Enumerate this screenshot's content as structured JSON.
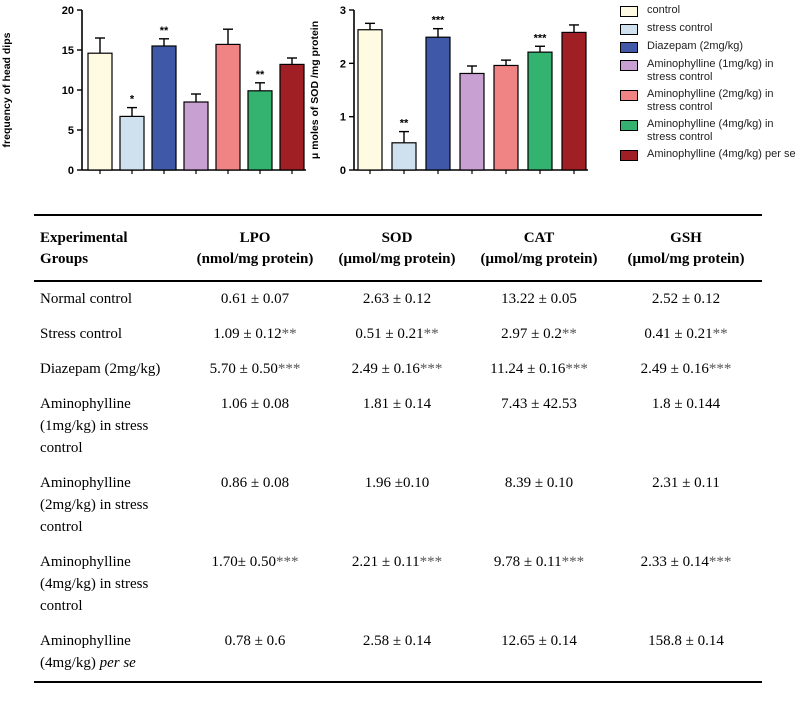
{
  "chart_data": [
    {
      "type": "bar",
      "ylabel": "frequency of head dips",
      "ylim": [
        0,
        20
      ],
      "yticks": [
        0,
        5,
        10,
        15,
        20
      ],
      "categories": [
        "control",
        "stress control",
        "Diazepam (2mg/kg)",
        "Aminophylline (1mg/kg) in stress control",
        "Aminophylline (2mg/kg) in stress control",
        "Aminophylline (4mg/kg) in stress control",
        "Aminophylline (4mg/kg) per se"
      ],
      "values": [
        14.6,
        6.7,
        15.5,
        8.5,
        15.7,
        9.9,
        13.2
      ],
      "errors": [
        1.9,
        1.1,
        0.9,
        1.0,
        1.9,
        1.0,
        0.8
      ],
      "significance": [
        "",
        "*",
        "**",
        "",
        "",
        "**",
        ""
      ]
    },
    {
      "type": "bar",
      "ylabel": "μ moles of SOD /mg protein",
      "ylim": [
        0,
        3
      ],
      "yticks": [
        0,
        1,
        2,
        3
      ],
      "categories": [
        "control",
        "stress control",
        "Diazepam (2mg/kg)",
        "Aminophylline (1mg/kg) in stress control",
        "Aminophylline (2mg/kg) in stress control",
        "Aminophylline (4mg/kg) in stress control",
        "Aminophylline (4mg/kg) per se"
      ],
      "values": [
        2.63,
        0.51,
        2.49,
        1.81,
        1.96,
        2.21,
        2.58
      ],
      "errors": [
        0.12,
        0.21,
        0.16,
        0.14,
        0.1,
        0.11,
        0.14
      ],
      "significance": [
        "",
        "**",
        "***",
        "",
        "",
        "***",
        ""
      ]
    }
  ],
  "colors": [
    "#fffbe3",
    "#cfe1ef",
    "#3f58a8",
    "#c9a0d2",
    "#f08484",
    "#34b26f",
    "#a01f24"
  ],
  "legend": [
    {
      "label": "control"
    },
    {
      "label": "stress control"
    },
    {
      "label": "Diazepam (2mg/kg)"
    },
    {
      "label": "Aminophylline (1mg/kg) in stress control"
    },
    {
      "label": "Aminophylline (2mg/kg) in stress control"
    },
    {
      "label": "Aminophylline (4mg/kg) in stress control"
    },
    {
      "label": "Aminophylline (4mg/kg) per se"
    }
  ],
  "table": {
    "headers": [
      {
        "line1": "Experimental",
        "line2": "Groups"
      },
      {
        "line1": "LPO",
        "line2": "(nmol/mg protein)"
      },
      {
        "line1": "SOD",
        "line2": "(μmol/mg protein)"
      },
      {
        "line1": "CAT",
        "line2": "(μmol/mg protein)"
      },
      {
        "line1": "GSH",
        "line2": "(μmol/mg protein)"
      }
    ],
    "rows": [
      {
        "group": "Normal control",
        "italic": "",
        "cells": [
          {
            "v": "0.61 ± 0.07",
            "s": ""
          },
          {
            "v": "2.63 ± 0.12",
            "s": ""
          },
          {
            "v": "13.22 ± 0.05",
            "s": ""
          },
          {
            "v": "2.52 ± 0.12",
            "s": ""
          }
        ]
      },
      {
        "group": "Stress control",
        "italic": "",
        "cells": [
          {
            "v": "1.09 ± 0.12",
            "s": "**"
          },
          {
            "v": "0.51 ± 0.21",
            "s": "**"
          },
          {
            "v": "2.97 ± 0.2",
            "s": "**"
          },
          {
            "v": "0.41 ± 0.21",
            "s": "**"
          }
        ]
      },
      {
        "group": "Diazepam (2mg/kg)",
        "italic": "",
        "cells": [
          {
            "v": "5.70 ± 0.50",
            "s": "***"
          },
          {
            "v": "2.49 ± 0.16",
            "s": "***"
          },
          {
            "v": "11.24 ± 0.16",
            "s": "***"
          },
          {
            "v": "2.49 ± 0.16",
            "s": "***"
          }
        ]
      },
      {
        "group": "Aminophylline (1mg/kg) in stress control",
        "italic": "",
        "cells": [
          {
            "v": "1.06 ± 0.08",
            "s": ""
          },
          {
            "v": "1.81 ± 0.14",
            "s": ""
          },
          {
            "v": "7.43 ± 42.53",
            "s": ""
          },
          {
            "v": "1.8 ± 0.144",
            "s": ""
          }
        ]
      },
      {
        "group": "Aminophylline (2mg/kg) in stress control",
        "italic": "",
        "cells": [
          {
            "v": "0.86 ± 0.08",
            "s": ""
          },
          {
            "v": "1.96 ±0.10",
            "s": ""
          },
          {
            "v": "8.39 ± 0.10",
            "s": ""
          },
          {
            "v": "2.31 ± 0.11",
            "s": ""
          }
        ]
      },
      {
        "group": "Aminophylline (4mg/kg) in stress control",
        "italic": "",
        "cells": [
          {
            "v": "1.70± 0.50",
            "s": "***"
          },
          {
            "v": "2.21 ± 0.11",
            "s": "***"
          },
          {
            "v": "9.78 ± 0.11",
            "s": "***"
          },
          {
            "v": "2.33 ± 0.14",
            "s": "***"
          }
        ]
      },
      {
        "group": "Aminophylline (4mg/kg)",
        "italic": "per se",
        "cells": [
          {
            "v": "0.78 ± 0.6",
            "s": ""
          },
          {
            "v": "2.58 ± 0.14",
            "s": ""
          },
          {
            "v": "12.65 ± 0.14",
            "s": ""
          },
          {
            "v": "158.8 ± 0.14",
            "s": ""
          }
        ]
      }
    ]
  }
}
